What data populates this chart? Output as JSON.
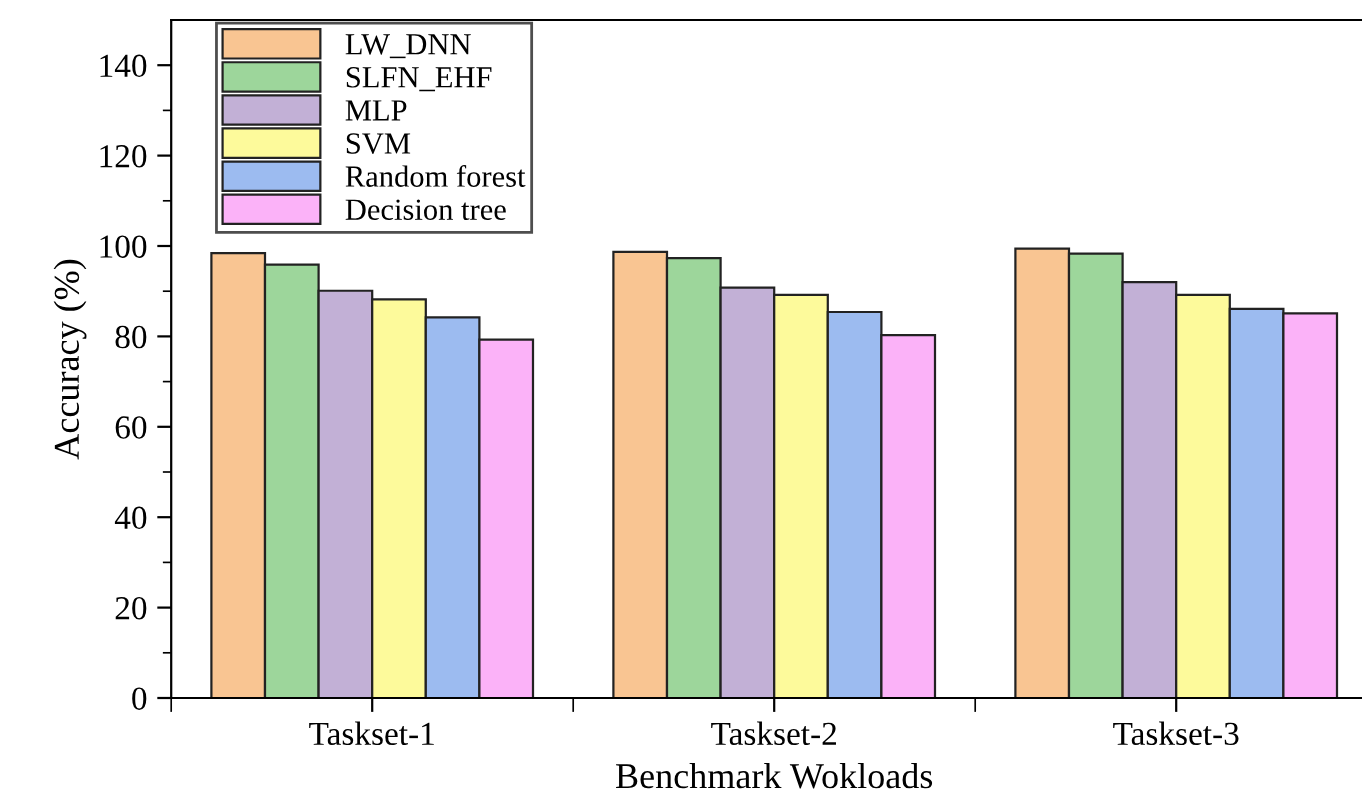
{
  "chart_data": {
    "type": "bar",
    "xlabel": "Benchmark Wokloads",
    "ylabel": "Accuracy (%)",
    "categories": [
      "Taskset-1",
      "Taskset-2",
      "Taskset-3"
    ],
    "series": [
      {
        "name": "LW_DNN",
        "color": "#f9c592",
        "values": [
          98.4,
          98.7,
          99.4
        ]
      },
      {
        "name": "SLFN_EHF",
        "color": "#9dd69b",
        "values": [
          95.9,
          97.3,
          98.3
        ]
      },
      {
        "name": "MLP",
        "color": "#c2b0d6",
        "values": [
          90.1,
          90.8,
          92.0
        ]
      },
      {
        "name": "SVM",
        "color": "#fdfa9b",
        "values": [
          88.2,
          89.2,
          89.2
        ]
      },
      {
        "name": "Random forest",
        "color": "#9cbbf0",
        "values": [
          84.2,
          85.4,
          86.1
        ]
      },
      {
        "name": "Decision tree",
        "color": "#fbb2f8",
        "values": [
          79.3,
          80.3,
          85.1
        ]
      }
    ],
    "ylim": [
      0,
      150
    ],
    "yticks": [
      0,
      {
        "value": 10,
        "label": null
      },
      20,
      {
        "value": 30,
        "label": null
      },
      40,
      {
        "value": 50,
        "label": null
      },
      60,
      {
        "value": 70,
        "label": null
      },
      80,
      {
        "value": 90,
        "label": null
      },
      100,
      {
        "value": 110,
        "label": null
      },
      120,
      {
        "value": 130,
        "label": null
      },
      140
    ],
    "grid": false,
    "legend": "top left"
  }
}
